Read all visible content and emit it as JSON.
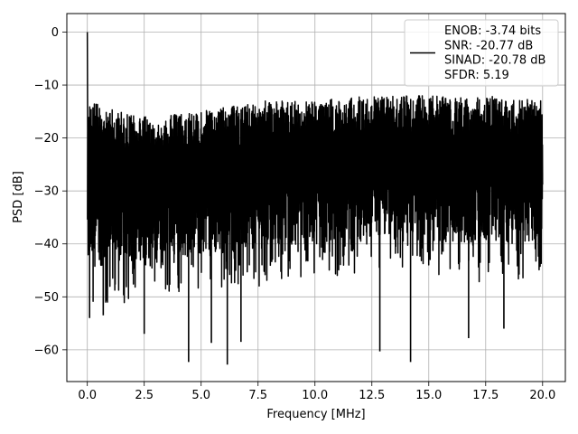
{
  "chart_data": {
    "type": "line",
    "title": "",
    "xlabel": "Frequency [MHz]",
    "ylabel": "PSD [dB]",
    "xlim": [
      -0.9,
      21.0
    ],
    "ylim": [
      -66,
      3.5
    ],
    "x_ticks": [
      0.0,
      2.5,
      5.0,
      7.5,
      10.0,
      12.5,
      15.0,
      17.5,
      20.0
    ],
    "x_tick_labels": [
      "0.0",
      "2.5",
      "5.0",
      "7.5",
      "10.0",
      "12.5",
      "15.0",
      "17.5",
      "20.0"
    ],
    "y_ticks": [
      0,
      -10,
      -20,
      -30,
      -40,
      -50,
      -60
    ],
    "y_tick_labels": [
      "0",
      "−10",
      "−20",
      "−30",
      "−40",
      "−50",
      "−60"
    ],
    "grid": true,
    "legend_position": "top-right",
    "series": [
      {
        "name": "ENOB: -3.74 bits\nSNR: -20.77 dB\nSINAD: -20.78 dB\nSFDR: 5.19",
        "color": "#000000",
        "x_range": [
          0.0,
          20.0
        ],
        "peak": {
          "x": 0.0,
          "y": 0.0
        },
        "envelope": [
          {
            "x": 0.0,
            "upper": -15,
            "lower": -54
          },
          {
            "x": 2.5,
            "upper": -18,
            "lower": -48
          },
          {
            "x": 5.0,
            "upper": -17,
            "lower": -48
          },
          {
            "x": 7.5,
            "upper": -15,
            "lower": -47
          },
          {
            "x": 10.0,
            "upper": -15,
            "lower": -45
          },
          {
            "x": 12.5,
            "upper": -14,
            "lower": -45
          },
          {
            "x": 15.0,
            "upper": -14,
            "lower": -45
          },
          {
            "x": 17.5,
            "upper": -14,
            "lower": -47
          },
          {
            "x": 20.0,
            "upper": -15,
            "lower": -45
          }
        ],
        "min_dips": [
          {
            "x": 0.1,
            "y": -54
          },
          {
            "x": 0.7,
            "y": -53.5
          },
          {
            "x": 2.5,
            "y": -57
          },
          {
            "x": 4.45,
            "y": -62.3
          },
          {
            "x": 5.45,
            "y": -58.7
          },
          {
            "x": 6.15,
            "y": -62.8
          },
          {
            "x": 6.75,
            "y": -58.5
          },
          {
            "x": 12.85,
            "y": -60.3
          },
          {
            "x": 14.2,
            "y": -62.3
          },
          {
            "x": 16.75,
            "y": -57.8
          },
          {
            "x": 18.3,
            "y": -56.0
          }
        ]
      }
    ]
  }
}
